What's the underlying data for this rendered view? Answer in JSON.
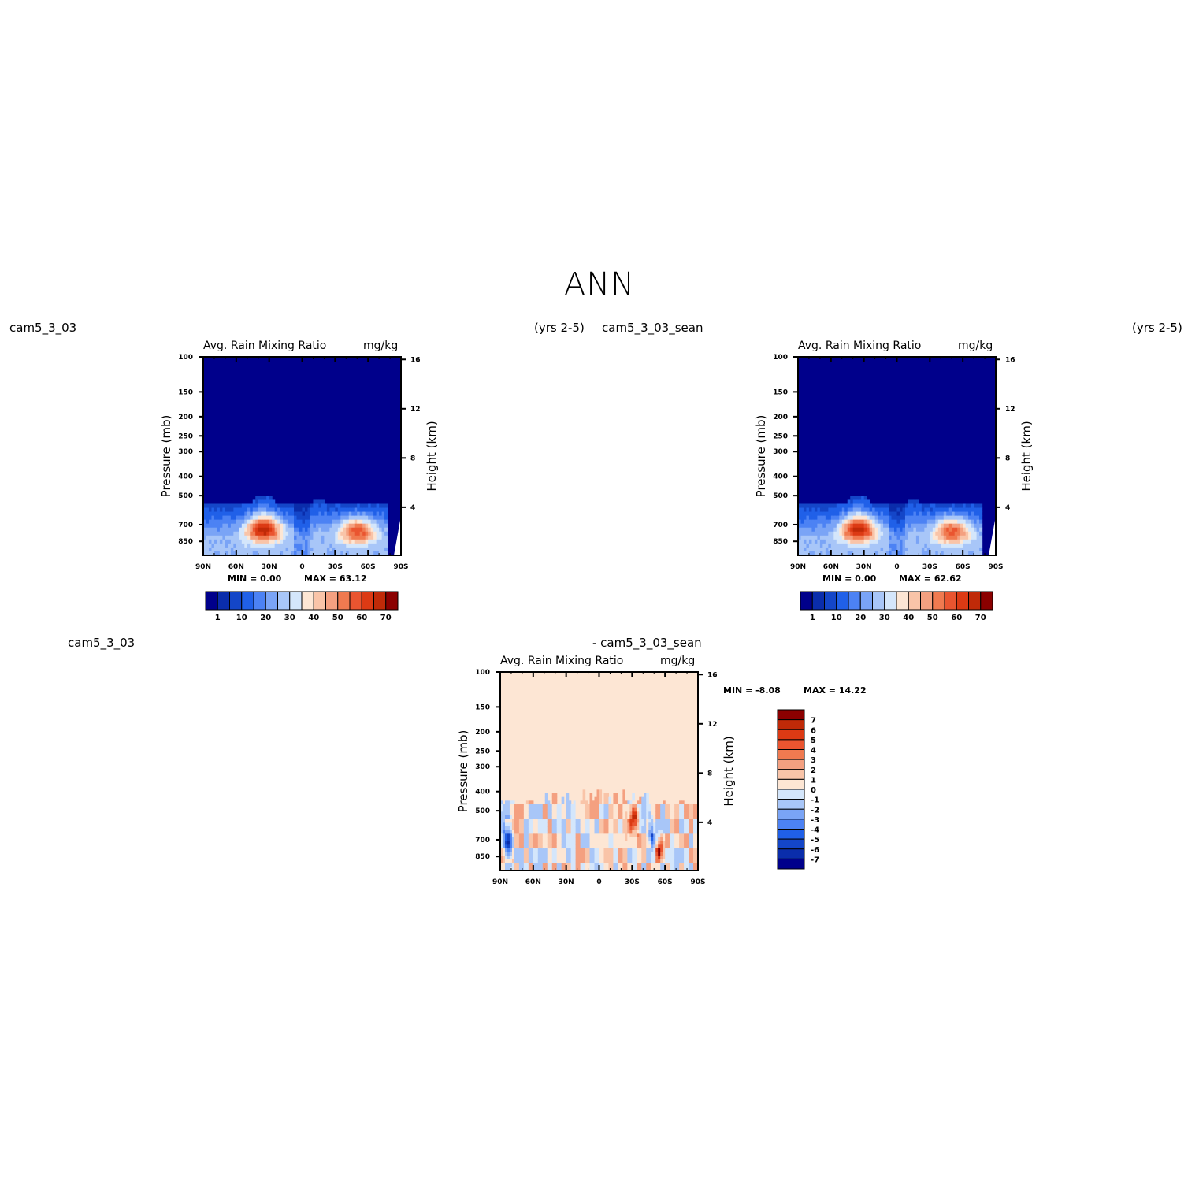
{
  "page": {
    "title": "ANN"
  },
  "colors": {
    "seq": [
      "#00008b",
      "#0a2dab",
      "#1446c8",
      "#2060e8",
      "#4c82f4",
      "#7aa4f6",
      "#a8c6f8",
      "#d4e6fb",
      "#fde6d4",
      "#f9c4a8",
      "#f4a080",
      "#f07a50",
      "#ea5530",
      "#dc3a14",
      "#c02a08",
      "#8b0000"
    ],
    "div": [
      "#00008b",
      "#0a2dab",
      "#1446c8",
      "#2060e8",
      "#4c82f4",
      "#7aa4f6",
      "#a8c6f8",
      "#d4e6fb",
      "#fde6d4",
      "#f9c4a8",
      "#f4a080",
      "#f07a50",
      "#ea5530",
      "#dc3a14",
      "#c02a08",
      "#8b0000"
    ]
  },
  "chart_data": [
    {
      "type": "heatmap",
      "case_label": "cam5_3_03",
      "years_label": "(yrs 2-5)",
      "title": "Avg. Rain Mixing Ratio",
      "units": "mg/kg",
      "ylabel": "Pressure (mb)",
      "y2label": "Height (km)",
      "x_ticks": [
        "90N",
        "60N",
        "30N",
        "0",
        "30S",
        "60S",
        "90S"
      ],
      "y_ticks": [
        "100",
        "150",
        "200",
        "250",
        "300",
        "400",
        "500",
        "700",
        "850"
      ],
      "y2_ticks": [
        "16",
        "12",
        "8",
        "4"
      ],
      "min_text": "MIN =    0.00",
      "max_text": "MAX =   63.12",
      "colorbar_labels": [
        "1",
        "10",
        "20",
        "30",
        "40",
        "50",
        "60",
        "70"
      ],
      "features": [
        {
          "lat": -50,
          "p": 750,
          "value": 55
        },
        {
          "lat": 35,
          "p": 740,
          "value": 63
        }
      ]
    },
    {
      "type": "heatmap",
      "case_label": "cam5_3_03_sean",
      "years_label": "(yrs 2-5)",
      "title": "Avg. Rain Mixing Ratio",
      "units": "mg/kg",
      "ylabel": "Pressure (mb)",
      "y2label": "Height (km)",
      "x_ticks": [
        "90N",
        "60N",
        "30N",
        "0",
        "30S",
        "60S",
        "90S"
      ],
      "y_ticks": [
        "100",
        "150",
        "200",
        "250",
        "300",
        "400",
        "500",
        "700",
        "850"
      ],
      "y2_ticks": [
        "16",
        "12",
        "8",
        "4"
      ],
      "min_text": "MIN =    0.00",
      "max_text": "MAX =   62.62",
      "colorbar_labels": [
        "1",
        "10",
        "20",
        "30",
        "40",
        "50",
        "60",
        "70"
      ],
      "features": [
        {
          "lat": -50,
          "p": 750,
          "value": 54
        },
        {
          "lat": 35,
          "p": 740,
          "value": 62
        }
      ]
    },
    {
      "type": "heatmap",
      "case_label": "cam5_3_03",
      "diff_label": "- cam5_3_03_sean",
      "title": "Avg. Rain Mixing Ratio",
      "units": "mg/kg",
      "ylabel": "Pressure (mb)",
      "y2label": "Height (km)",
      "x_ticks": [
        "90N",
        "60N",
        "30N",
        "0",
        "30S",
        "60S",
        "90S"
      ],
      "y_ticks": [
        "100",
        "150",
        "200",
        "250",
        "300",
        "400",
        "500",
        "700",
        "850"
      ],
      "y2_ticks": [
        "16",
        "12",
        "8",
        "4"
      ],
      "min_text": "MIN =   -8.08",
      "max_text": "MAX =   14.22",
      "colorbar_labels": [
        "7",
        "6",
        "5",
        "4",
        "3",
        "2",
        "1",
        "0",
        "-1",
        "-2",
        "-3",
        "-4",
        "-5",
        "-6",
        "-7"
      ]
    }
  ]
}
